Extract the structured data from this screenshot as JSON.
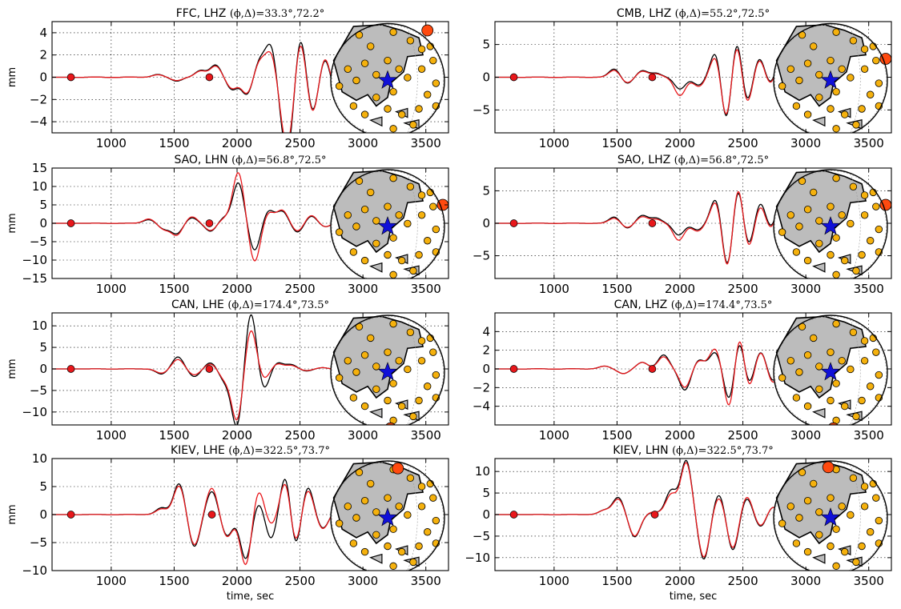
{
  "figure": {
    "type": "seismogram-grid",
    "x_axis_label": "time, sec",
    "y_axis_label": "mm",
    "x_ticks": [
      "1000",
      "1500",
      "2000",
      "2500",
      "3000",
      "3500"
    ],
    "colors": {
      "data_trace": "#000000",
      "synthetic_trace": "#e8171b",
      "marker": "#e8171b",
      "station": "#f5b10d",
      "active_station": "#ff4a0f",
      "epicenter": "#1010d8",
      "land": "#bcbcbc"
    }
  },
  "chart_data": [
    {
      "type": "line",
      "title": "FFC, LHZ",
      "title_math": "(ϕ,Δ)=33.3°,72.2°",
      "xlim": [
        530,
        3680
      ],
      "ylim": [
        -5,
        5
      ],
      "y_ticks": [
        "4",
        "2",
        "0",
        "−2",
        "−4"
      ],
      "y_tick_values": [
        4,
        2,
        0,
        -2,
        -4
      ],
      "ylabel": "mm",
      "xlabel": "",
      "markers": [
        {
          "x": 680,
          "y": 0
        },
        {
          "x": 1780,
          "y": 0
        }
      ],
      "wave": {
        "t": [
          1370,
          1520,
          1710,
          1830,
          1960,
          2080,
          2180,
          2270,
          2370,
          2420,
          2500,
          2600,
          2700,
          2780,
          2860
        ],
        "a": [
          0.25,
          -0.35,
          0.6,
          1.1,
          -1.1,
          -1.6,
          1.5,
          2.9,
          -3.6,
          -4.6,
          4.2,
          -3.3,
          2.0,
          -1.6,
          0.8
        ]
      },
      "synth": {
        "t": [
          1370,
          1520,
          1710,
          1830,
          1960,
          2080,
          2180,
          2270,
          2370,
          2420,
          2500,
          2600,
          2700,
          2780,
          2860
        ],
        "a": [
          0.22,
          -0.3,
          0.55,
          1.0,
          -1.0,
          -1.5,
          1.4,
          2.2,
          -3.1,
          -4.2,
          3.8,
          -3.4,
          2.1,
          -1.5,
          0.8
        ]
      },
      "inset_highlight": "top-right"
    },
    {
      "type": "line",
      "title": "CMB, LHZ",
      "title_math": "(ϕ,Δ)=55.2°,72.5°",
      "xlim": [
        530,
        3680
      ],
      "ylim": [
        -8.5,
        8.5
      ],
      "y_ticks": [
        "5",
        "0",
        "−5"
      ],
      "y_tick_values": [
        5,
        0,
        -5
      ],
      "ylabel": "",
      "xlabel": "",
      "markers": [
        {
          "x": 680,
          "y": 0
        },
        {
          "x": 1780,
          "y": 0
        }
      ],
      "wave": {
        "t": [
          1480,
          1580,
          1700,
          1810,
          2000,
          2150,
          2290,
          2370,
          2450,
          2530,
          2630,
          2720,
          2800,
          2880
        ],
        "a": [
          1.3,
          -1.0,
          1.0,
          0.6,
          -1.8,
          -1.2,
          4.5,
          -8.0,
          7.0,
          -4.5,
          3.2,
          -1.5,
          2.8,
          -1.0
        ]
      },
      "synth": {
        "t": [
          1480,
          1580,
          1700,
          1810,
          2000,
          2150,
          2290,
          2370,
          2450,
          2530,
          2630,
          2720,
          2800,
          2880
        ],
        "a": [
          1.1,
          -0.9,
          0.9,
          0.5,
          -2.8,
          -1.4,
          3.8,
          -7.5,
          6.5,
          -4.8,
          3.0,
          -1.6,
          2.6,
          -1.0
        ]
      },
      "inset_highlight": "right"
    },
    {
      "type": "line",
      "title": "SAO, LHN",
      "title_math": "(ϕ,Δ)=56.8°,72.5°",
      "xlim": [
        530,
        3680
      ],
      "ylim": [
        -15,
        15
      ],
      "y_ticks": [
        "15",
        "10",
        "5",
        "0",
        "−5",
        "−10",
        "−15"
      ],
      "y_tick_values": [
        15,
        10,
        5,
        0,
        -5,
        -10,
        -15
      ],
      "ylabel": "mm",
      "xlabel": "",
      "markers": [
        {
          "x": 680,
          "y": 0
        },
        {
          "x": 1780,
          "y": 0
        }
      ],
      "wave": {
        "t": [
          1300,
          1420,
          1520,
          1640,
          1790,
          1900,
          2010,
          2140,
          2250,
          2360,
          2480,
          2590,
          2700,
          2820
        ],
        "a": [
          1.0,
          -1.5,
          -2.8,
          1.5,
          -2.2,
          1.5,
          11.0,
          -7.5,
          3.5,
          3.2,
          -2.5,
          2.0,
          -1.0,
          0.6
        ]
      },
      "synth": {
        "t": [
          1300,
          1420,
          1520,
          1640,
          1790,
          1900,
          2010,
          2140,
          2250,
          2360,
          2480,
          2590,
          2700,
          2820
        ],
        "a": [
          1.2,
          -1.6,
          -3.2,
          1.8,
          -2.0,
          1.2,
          13.8,
          -10.5,
          3.0,
          3.5,
          -2.2,
          2.2,
          -1.0,
          0.6
        ]
      },
      "inset_highlight": "right"
    },
    {
      "type": "line",
      "title": "SAO, LHZ",
      "title_math": "(ϕ,Δ)=56.8°,72.5°",
      "xlim": [
        530,
        3680
      ],
      "ylim": [
        -8.5,
        8.5
      ],
      "y_ticks": [
        "5",
        "0",
        "−5"
      ],
      "y_tick_values": [
        5,
        0,
        -5
      ],
      "ylabel": "",
      "xlabel": "",
      "markers": [
        {
          "x": 680,
          "y": 0
        },
        {
          "x": 1780,
          "y": 0
        }
      ],
      "wave": {
        "t": [
          1480,
          1580,
          1700,
          1810,
          1990,
          2140,
          2290,
          2380,
          2460,
          2540,
          2640,
          2720,
          2800,
          2880
        ],
        "a": [
          1.0,
          -0.8,
          1.2,
          0.8,
          -1.8,
          -1.0,
          4.2,
          -7.8,
          6.8,
          -4.2,
          3.5,
          -1.5,
          3.0,
          -1.0
        ]
      },
      "synth": {
        "t": [
          1480,
          1580,
          1700,
          1810,
          1990,
          2140,
          2290,
          2380,
          2460,
          2540,
          2640,
          2720,
          2800,
          2880
        ],
        "a": [
          0.8,
          -0.7,
          1.0,
          0.6,
          -2.6,
          -1.2,
          3.8,
          -8.0,
          7.2,
          -4.6,
          3.0,
          -1.6,
          2.8,
          -1.0
        ]
      },
      "inset_highlight": "right"
    },
    {
      "type": "line",
      "title": "CAN, LHE",
      "title_math": "(ϕ,Δ)=174.4°,73.5°",
      "xlim": [
        530,
        3680
      ],
      "ylim": [
        -13,
        13
      ],
      "y_ticks": [
        "10",
        "5",
        "0",
        "−5",
        "−10"
      ],
      "y_tick_values": [
        10,
        5,
        0,
        -5,
        -10
      ],
      "ylabel": "mm",
      "xlabel": "",
      "markers": [
        {
          "x": 680,
          "y": 0
        },
        {
          "x": 1780,
          "y": 0
        }
      ],
      "wave": {
        "t": [
          1400,
          1530,
          1660,
          1790,
          1900,
          2000,
          2110,
          2210,
          2320,
          2430,
          2550,
          2680,
          2800
        ],
        "a": [
          -1.2,
          2.8,
          -1.8,
          1.5,
          -2.5,
          -13.5,
          13.5,
          -5.0,
          1.5,
          1.0,
          -0.5,
          0.3,
          -0.2
        ]
      },
      "synth": {
        "t": [
          1400,
          1530,
          1660,
          1790,
          1900,
          2000,
          2110,
          2210,
          2320,
          2430,
          2550,
          2680,
          2800
        ],
        "a": [
          -1.0,
          2.2,
          -1.4,
          1.2,
          -2.2,
          -12.0,
          9.5,
          -2.5,
          1.2,
          0.8,
          -0.4,
          0.3,
          -0.2
        ]
      },
      "inset_highlight": "bottom"
    },
    {
      "type": "line",
      "title": "CAN, LHZ",
      "title_math": "(ϕ,Δ)=174.4°,73.5°",
      "xlim": [
        530,
        3680
      ],
      "ylim": [
        -6,
        6
      ],
      "y_ticks": [
        "4",
        "2",
        "0",
        "−2",
        "−4"
      ],
      "y_tick_values": [
        4,
        2,
        0,
        -2,
        -4
      ],
      "ylabel": "",
      "xlabel": "",
      "markers": [
        {
          "x": 680,
          "y": 0
        },
        {
          "x": 1780,
          "y": 0
        }
      ],
      "wave": {
        "t": [
          1400,
          1550,
          1700,
          1870,
          2040,
          2150,
          2280,
          2400,
          2470,
          2540,
          2640,
          2740,
          2820
        ],
        "a": [
          0.3,
          -0.5,
          0.7,
          1.5,
          -2.3,
          1.0,
          1.8,
          -4.0,
          4.2,
          -2.3,
          2.0,
          -1.5,
          0.8
        ]
      },
      "synth": {
        "t": [
          1400,
          1550,
          1700,
          1870,
          2040,
          2150,
          2280,
          2400,
          2470,
          2540,
          2640,
          2740,
          2820
        ],
        "a": [
          0.3,
          -0.5,
          0.7,
          1.3,
          -2.0,
          0.9,
          2.2,
          -5.0,
          5.0,
          -2.8,
          2.0,
          -1.7,
          0.8
        ]
      },
      "inset_highlight": "bottom"
    },
    {
      "type": "line",
      "title": "KIEV, LHE",
      "title_math": "(ϕ,Δ)=322.5°,73.7°",
      "xlim": [
        530,
        3680
      ],
      "ylim": [
        -10,
        10
      ],
      "y_ticks": [
        "10",
        "5",
        "0",
        "−5",
        "−10"
      ],
      "y_tick_values": [
        10,
        5,
        0,
        -5,
        -10
      ],
      "ylabel": "mm",
      "xlabel": "time, sec",
      "markers": [
        {
          "x": 680,
          "y": 0
        },
        {
          "x": 1800,
          "y": 0
        }
      ],
      "wave": {
        "t": [
          1400,
          1540,
          1660,
          1800,
          1920,
          2070,
          2170,
          2270,
          2390,
          2460,
          2560,
          2680,
          2800
        ],
        "a": [
          1.2,
          5.6,
          -5.8,
          4.2,
          -3.8,
          -8.0,
          2.5,
          -4.5,
          8.0,
          -7.0,
          5.2,
          -2.5,
          1.0
        ]
      },
      "synth": {
        "t": [
          1400,
          1540,
          1660,
          1800,
          1920,
          2070,
          2170,
          2270,
          2390,
          2460,
          2560,
          2680,
          2800
        ],
        "a": [
          1.0,
          5.2,
          -5.5,
          4.8,
          -4.0,
          -9.2,
          4.6,
          -2.0,
          6.8,
          -6.2,
          4.6,
          -2.6,
          1.0
        ]
      },
      "inset_highlight": "top"
    },
    {
      "type": "line",
      "title": "KIEV, LHN",
      "title_math": "(ϕ,Δ)=322.5°,73.7°",
      "xlim": [
        530,
        3680
      ],
      "ylim": [
        -13,
        13
      ],
      "y_ticks": [
        "10",
        "5",
        "0",
        "−5",
        "−10"
      ],
      "y_tick_values": [
        10,
        5,
        0,
        -5,
        -10
      ],
      "ylabel": "",
      "xlabel": "time, sec",
      "markers": [
        {
          "x": 680,
          "y": 0
        },
        {
          "x": 1800,
          "y": 0
        }
      ],
      "wave": {
        "t": [
          1400,
          1510,
          1640,
          1790,
          1930,
          2050,
          2190,
          2310,
          2420,
          2530,
          2640,
          2740,
          2830
        ],
        "a": [
          1.0,
          4.0,
          -5.2,
          0.5,
          5.5,
          12.5,
          -10.5,
          5.0,
          -8.5,
          4.0,
          -3.0,
          2.0,
          -1.0
        ]
      },
      "synth": {
        "t": [
          1400,
          1510,
          1640,
          1790,
          1930,
          2050,
          2190,
          2310,
          2420,
          2530,
          2640,
          2740,
          2830
        ],
        "a": [
          1.0,
          3.6,
          -5.0,
          0.6,
          4.6,
          12.0,
          -10.0,
          4.2,
          -8.0,
          4.4,
          -2.8,
          2.0,
          -1.0
        ]
      },
      "inset_highlight": "top-left"
    }
  ]
}
